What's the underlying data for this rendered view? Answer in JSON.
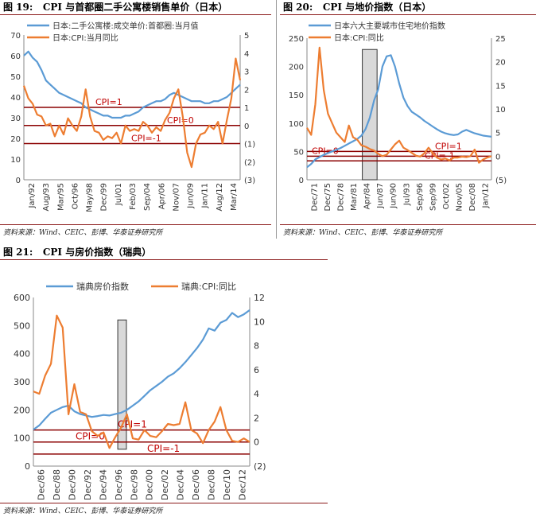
{
  "source_text": "资料来源：Wind、CEIC、彭博、华泰证券研究所",
  "charts": [
    {
      "fig_label": "图 19:",
      "fig_title": "CPI 与首都圈二手公寓楼销售单价（日本）",
      "type": "line",
      "x_ticks": [
        "Jan/92",
        "Aug/93",
        "Mar/95",
        "Oct/96",
        "May/98",
        "Dec/99",
        "Jul/01",
        "Feb/03",
        "Sep/04",
        "Apr/06",
        "Nov/07",
        "Jun/09",
        "Jan/11",
        "Aug/12",
        "Mar/14"
      ],
      "y_left": {
        "min": 0,
        "max": 70,
        "ticks": [
          "0",
          "10",
          "20",
          "30",
          "40",
          "50",
          "60",
          "70"
        ]
      },
      "y_right": {
        "min": -3,
        "max": 5,
        "ticks": [
          "(3)",
          "(2)",
          "(1)",
          "0",
          "1",
          "2",
          "3",
          "4",
          "5"
        ]
      },
      "ref_lines": [
        {
          "label": "CPI=1",
          "value": 1
        },
        {
          "label": "CPI=0",
          "value": 0
        },
        {
          "label": "CPI=-1",
          "value": -1
        }
      ],
      "series": [
        {
          "name": "日本:二手公寓楼:成交单价:首都圈:当月值",
          "axis": "left",
          "color": "#5b9bd5",
          "values": [
            60,
            62,
            59,
            57,
            53,
            48,
            46,
            44,
            42,
            41,
            40,
            39,
            38,
            37,
            35,
            34,
            33,
            32,
            31,
            31,
            30,
            30,
            30,
            31,
            31,
            32,
            33,
            35,
            36,
            37,
            38,
            38,
            39,
            41,
            42,
            41,
            40,
            39,
            38,
            38,
            38,
            37,
            37,
            38,
            38,
            39,
            40,
            42,
            44,
            46
          ]
        },
        {
          "name": "日本:CPI:当月同比",
          "axis": "right",
          "color": "#ed7d31",
          "values": [
            2.2,
            1.5,
            1.2,
            0.6,
            0.5,
            0.0,
            0.1,
            -0.6,
            0.0,
            -0.5,
            0.4,
            0.0,
            -0.3,
            0.5,
            2.0,
            0.5,
            -0.3,
            -0.4,
            -0.8,
            -0.6,
            -0.7,
            -0.4,
            -1.0,
            0.0,
            -0.3,
            -0.2,
            -0.3,
            0.2,
            0.0,
            -0.4,
            -0.1,
            -0.3,
            0.3,
            0.7,
            1.5,
            2.0,
            0.5,
            -1.5,
            -2.3,
            -1.0,
            -0.5,
            -0.4,
            0.0,
            -0.2,
            0.2,
            -1.0,
            0.3,
            1.5,
            3.7,
            2.5
          ]
        }
      ]
    },
    {
      "fig_label": "图 20:",
      "fig_title": "CPI 与地价指数（日本）",
      "type": "line",
      "x_ticks": [
        "Dec/71",
        "Dec/75",
        "Dec/78",
        "Mar/81",
        "Apr/84",
        "Jun/87",
        "Jun/90",
        "Jul/93",
        "Sep/96",
        "Sep/99",
        "Oct/02",
        "Nov/05",
        "Dec/08",
        "Jan/12"
      ],
      "y_left": {
        "min": 0,
        "max": 250,
        "ticks": [
          "0",
          "50",
          "100",
          "150",
          "200",
          "250"
        ]
      },
      "y_right": {
        "min": -5,
        "max": 25,
        "ticks": [
          "(5)",
          "0",
          "5",
          "10",
          "15",
          "20",
          "25"
        ]
      },
      "shade": {
        "x0": 0.3,
        "x1": 0.38,
        "y0": 0,
        "y1": 230
      },
      "ref_lines": [
        {
          "label": "CPI=1",
          "value": 1
        },
        {
          "label": "CPI=0",
          "value": 0
        },
        {
          "label": "CPI=-1",
          "value": -1
        }
      ],
      "series": [
        {
          "name": "日本六大主要城市住宅地价指数",
          "axis": "left",
          "color": "#5b9bd5",
          "values": [
            22,
            28,
            36,
            40,
            44,
            47,
            50,
            53,
            56,
            60,
            64,
            68,
            72,
            78,
            90,
            110,
            140,
            160,
            200,
            218,
            220,
            200,
            170,
            145,
            130,
            120,
            115,
            110,
            104,
            99,
            94,
            89,
            85,
            82,
            80,
            79,
            80,
            85,
            88,
            85,
            82,
            80,
            78,
            77,
            76
          ]
        },
        {
          "name": "日本:CPI:同比",
          "axis": "right",
          "color": "#ed7d31",
          "values": [
            6,
            4.5,
            11,
            23,
            14,
            9,
            7,
            5,
            4,
            3,
            6.5,
            4,
            3.5,
            2.3,
            2.0,
            1.5,
            1.2,
            0.5,
            0,
            0.3,
            1.4,
            2.5,
            3.3,
            1.8,
            1.3,
            0.7,
            0.1,
            -0.1,
            0.6,
            1.8,
            0.6,
            -0.3,
            -0.7,
            -0.5,
            -0.9,
            -0.3,
            -0.3,
            -0.1,
            -0.2,
            0.0,
            1.4,
            -1.4,
            -0.7,
            -0.3,
            0.0
          ]
        }
      ]
    },
    {
      "fig_label": "图 21:",
      "fig_title": "CPI 与房价指数（瑞典）",
      "type": "line",
      "x_ticks": [
        "Dec/86",
        "Dec/88",
        "Dec/90",
        "Dec/92",
        "Dec/94",
        "Dec/96",
        "Dec/98",
        "Dec/00",
        "Dec/02",
        "Dec/04",
        "Dec/06",
        "Dec/08",
        "Dec/10",
        "Dec/12"
      ],
      "y_left": {
        "min": 0,
        "max": 600,
        "ticks": [
          "0",
          "100",
          "200",
          "300",
          "400",
          "500",
          "600"
        ]
      },
      "y_right": {
        "min": -2,
        "max": 12,
        "ticks": [
          "(2)",
          "0",
          "2",
          "4",
          "6",
          "8",
          "10",
          "12"
        ]
      },
      "shade": {
        "x0": 0.39,
        "x1": 0.43,
        "y0": 60,
        "y1": 520
      },
      "ref_lines": [
        {
          "label": "CPI=1",
          "value": 1
        },
        {
          "label": "CPI=0",
          "value": 0
        },
        {
          "label": "CPI=-1",
          "value": -1
        }
      ],
      "series": [
        {
          "name": "瑞典房价指数",
          "axis": "left",
          "color": "#5b9bd5",
          "values": [
            130,
            145,
            168,
            190,
            200,
            210,
            215,
            195,
            185,
            180,
            175,
            178,
            182,
            180,
            185,
            190,
            200,
            215,
            230,
            250,
            270,
            285,
            300,
            318,
            330,
            348,
            370,
            395,
            420,
            450,
            490,
            482,
            510,
            520,
            545,
            530,
            540,
            555
          ]
        },
        {
          "name": "瑞典:CPI:同比",
          "axis": "right",
          "color": "#ed7d31",
          "values": [
            4.2,
            4.0,
            5.5,
            6.5,
            10.5,
            9.5,
            2.3,
            4.8,
            2.5,
            2.3,
            0.9,
            0.5,
            0.8,
            -0.5,
            0.4,
            1.2,
            2.3,
            0.3,
            0.2,
            1.0,
            0.5,
            0.4,
            0.9,
            1.5,
            1.4,
            1.5,
            3.3,
            1.0,
            0.7,
            -0.1,
            1.0,
            1.7,
            2.9,
            1.0,
            0.1,
            0.0,
            0.3,
            0.0
          ]
        }
      ]
    }
  ]
}
